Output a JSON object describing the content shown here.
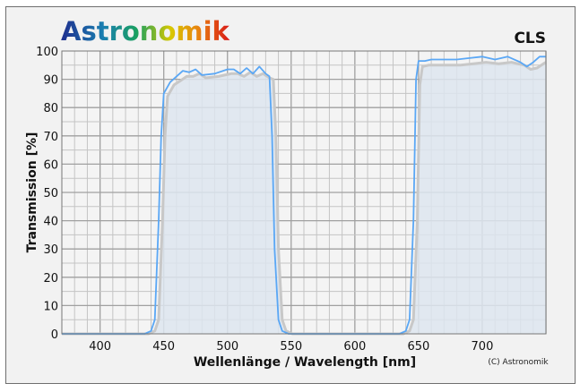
{
  "logo": {
    "text": "Astronomik"
  },
  "chart_data": {
    "type": "line",
    "title": "CLS",
    "xlabel": "Wellenlänge / Wavelength [nm]",
    "ylabel": "Transmission [%]",
    "copyright": "(C) Astronomik",
    "xlim": [
      370,
      750
    ],
    "ylim": [
      0,
      100
    ],
    "xticks": [
      400,
      450,
      500,
      550,
      600,
      650,
      700
    ],
    "yticks": [
      0,
      10,
      20,
      30,
      40,
      50,
      60,
      70,
      80,
      90,
      100
    ],
    "grid": true,
    "colors": {
      "main": "#5aa7f5",
      "shadow": "#c8c8c8",
      "fill": "#dde5ef"
    },
    "series": [
      {
        "x": [
          370,
          435,
          440,
          443,
          446,
          448,
          450,
          455,
          460,
          465,
          470,
          475,
          480,
          490,
          500,
          505,
          510,
          515,
          520,
          525,
          530,
          533,
          535,
          537,
          540,
          543,
          548,
          635,
          640,
          643,
          646,
          648,
          650,
          655,
          660,
          680,
          690,
          700,
          710,
          720,
          730,
          735,
          740,
          745,
          750
        ],
        "y": [
          0,
          0,
          1,
          5,
          40,
          70,
          85,
          89,
          91,
          93,
          92.5,
          93.5,
          91.5,
          92,
          93.5,
          93.5,
          92,
          94,
          92,
          94.5,
          92,
          91,
          70,
          30,
          5,
          1,
          0,
          0,
          1,
          5,
          40,
          90,
          96.5,
          96.5,
          97,
          97,
          97.5,
          98,
          97,
          98,
          96,
          94.5,
          96,
          98,
          98
        ]
      },
      {
        "x": [
          370,
          438,
          443,
          446,
          449,
          451,
          453,
          458,
          463,
          468,
          473,
          478,
          483,
          493,
          503,
          508,
          513,
          518,
          523,
          528,
          533,
          536,
          538,
          540,
          543,
          546,
          551,
          638,
          643,
          646,
          649,
          651,
          653,
          658,
          663,
          683,
          693,
          703,
          713,
          723,
          733,
          738,
          743,
          748,
          750
        ],
        "y": [
          0,
          0,
          1,
          5,
          40,
          70,
          84,
          88,
          89.5,
          91,
          91,
          92,
          90.5,
          91,
          92,
          92,
          91,
          92.5,
          91,
          92,
          90.5,
          90,
          70,
          30,
          5,
          1,
          0,
          0,
          1,
          5,
          40,
          88,
          94.5,
          95,
          95,
          95,
          95.5,
          96,
          95.5,
          96,
          95,
          93.5,
          94,
          95.5,
          96
        ]
      }
    ]
  }
}
